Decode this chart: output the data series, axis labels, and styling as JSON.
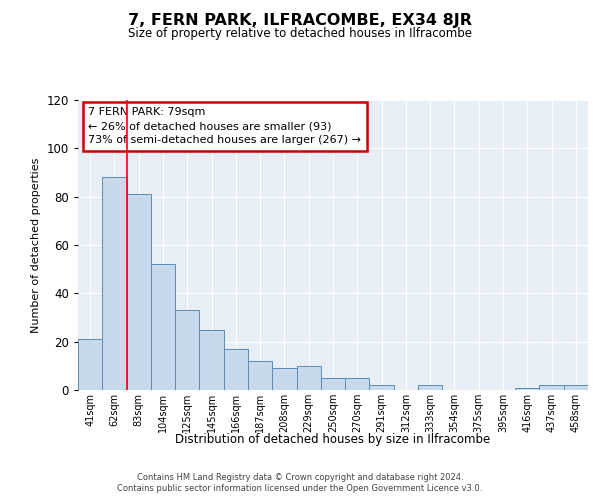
{
  "title": "7, FERN PARK, ILFRACOMBE, EX34 8JR",
  "subtitle": "Size of property relative to detached houses in Ilfracombe",
  "xlabel": "Distribution of detached houses by size in Ilfracombe",
  "ylabel": "Number of detached properties",
  "bar_labels": [
    "41sqm",
    "62sqm",
    "83sqm",
    "104sqm",
    "125sqm",
    "145sqm",
    "166sqm",
    "187sqm",
    "208sqm",
    "229sqm",
    "250sqm",
    "270sqm",
    "291sqm",
    "312sqm",
    "333sqm",
    "354sqm",
    "375sqm",
    "395sqm",
    "416sqm",
    "437sqm",
    "458sqm"
  ],
  "bar_values": [
    21,
    88,
    81,
    52,
    33,
    25,
    17,
    12,
    9,
    10,
    5,
    5,
    2,
    0,
    2,
    0,
    0,
    0,
    1,
    2,
    2
  ],
  "bar_color": "#c9d9ec",
  "bar_edge_color": "#5b8db8",
  "background_color": "#e8eef5",
  "red_line_index": 2,
  "annotation_text": "7 FERN PARK: 79sqm\n← 26% of detached houses are smaller (93)\n73% of semi-detached houses are larger (267) →",
  "annotation_box_color": "#ffffff",
  "annotation_box_edge_color": "#cc0000",
  "ylim": [
    0,
    120
  ],
  "yticks": [
    0,
    20,
    40,
    60,
    80,
    100,
    120
  ],
  "footer_line1": "Contains HM Land Registry data © Crown copyright and database right 2024.",
  "footer_line2": "Contains public sector information licensed under the Open Government Licence v3.0."
}
